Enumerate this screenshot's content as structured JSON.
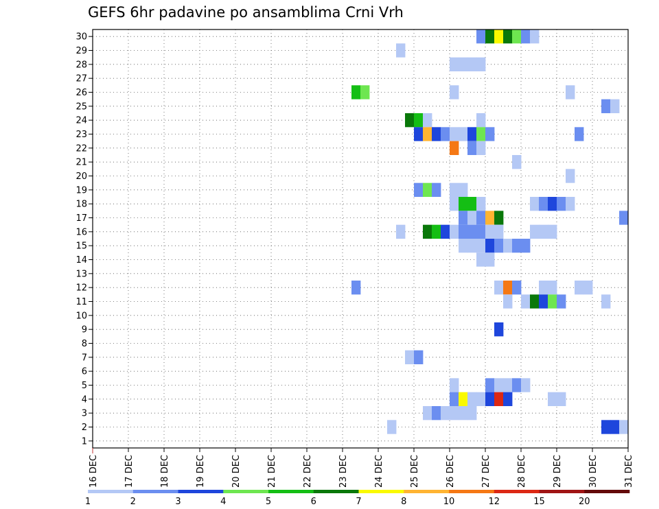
{
  "chart_data": {
    "type": "heatmap",
    "title": "GEFS 6hr padavine po ansamblima Crni Vrh",
    "xlabel": "",
    "ylabel": "",
    "grid": true,
    "x_tick_labels": [
      "16 DEC",
      "17 DEC",
      "18 DEC",
      "19 DEC",
      "20 DEC",
      "21 DEC",
      "22 DEC",
      "23 DEC",
      "24 DEC",
      "25 DEC",
      "26 DEC",
      "27 DEC",
      "28 DEC",
      "29 DEC",
      "30 DEC",
      "31 DEC"
    ],
    "y_tick_labels": [
      "1",
      "2",
      "3",
      "4",
      "5",
      "6",
      "7",
      "8",
      "9",
      "10",
      "11",
      "12",
      "13",
      "14",
      "15",
      "16",
      "17",
      "18",
      "19",
      "20",
      "21",
      "22",
      "23",
      "24",
      "25",
      "26",
      "27",
      "28",
      "29",
      "30"
    ],
    "xlim_steps": [
      0,
      60
    ],
    "steps_per_day": 4,
    "ylim_members": [
      0,
      30
    ],
    "colorbar": {
      "labels": [
        "1",
        "2",
        "3",
        "4",
        "5",
        "6",
        "7",
        "8",
        "10",
        "12",
        "15",
        "20"
      ],
      "colors": [
        "#b4c8f5",
        "#6b8ef0",
        "#1e46dc",
        "#6ee650",
        "#14be14",
        "#0a780a",
        "#fafa00",
        "#ffb432",
        "#f57814",
        "#dc2814",
        "#a01414",
        "#640a0a"
      ]
    },
    "cells": [
      {
        "m": 30,
        "s": 43,
        "c": 2
      },
      {
        "m": 30,
        "s": 44,
        "c": 6
      },
      {
        "m": 30,
        "s": 45,
        "c": 7
      },
      {
        "m": 30,
        "s": 46,
        "c": 6
      },
      {
        "m": 30,
        "s": 47,
        "c": 4
      },
      {
        "m": 30,
        "s": 48,
        "c": 2
      },
      {
        "m": 30,
        "s": 49,
        "c": 1
      },
      {
        "m": 29,
        "s": 34,
        "c": 1
      },
      {
        "m": 28,
        "s": 40,
        "c": 1
      },
      {
        "m": 28,
        "s": 41,
        "c": 1
      },
      {
        "m": 28,
        "s": 42,
        "c": 1
      },
      {
        "m": 28,
        "s": 43,
        "c": 1
      },
      {
        "m": 26,
        "s": 29,
        "c": 5
      },
      {
        "m": 26,
        "s": 30,
        "c": 4
      },
      {
        "m": 26,
        "s": 40,
        "c": 1
      },
      {
        "m": 26,
        "s": 53,
        "c": 1
      },
      {
        "m": 25,
        "s": 57,
        "c": 2
      },
      {
        "m": 25,
        "s": 58,
        "c": 1
      },
      {
        "m": 24,
        "s": 35,
        "c": 6
      },
      {
        "m": 24,
        "s": 36,
        "c": 5
      },
      {
        "m": 24,
        "s": 37,
        "c": 1
      },
      {
        "m": 24,
        "s": 43,
        "c": 1
      },
      {
        "m": 23,
        "s": 36,
        "c": 3
      },
      {
        "m": 23,
        "s": 37,
        "c": 8
      },
      {
        "m": 23,
        "s": 38,
        "c": 3
      },
      {
        "m": 23,
        "s": 39,
        "c": 2
      },
      {
        "m": 23,
        "s": 40,
        "c": 1
      },
      {
        "m": 23,
        "s": 41,
        "c": 1
      },
      {
        "m": 23,
        "s": 42,
        "c": 3
      },
      {
        "m": 23,
        "s": 43,
        "c": 4
      },
      {
        "m": 23,
        "s": 44,
        "c": 2
      },
      {
        "m": 23,
        "s": 54,
        "c": 2
      },
      {
        "m": 22,
        "s": 40,
        "c": 9
      },
      {
        "m": 22,
        "s": 42,
        "c": 2
      },
      {
        "m": 22,
        "s": 43,
        "c": 1
      },
      {
        "m": 21,
        "s": 47,
        "c": 1
      },
      {
        "m": 20,
        "s": 53,
        "c": 1
      },
      {
        "m": 19,
        "s": 36,
        "c": 2
      },
      {
        "m": 19,
        "s": 37,
        "c": 4
      },
      {
        "m": 19,
        "s": 38,
        "c": 2
      },
      {
        "m": 19,
        "s": 40,
        "c": 1
      },
      {
        "m": 19,
        "s": 41,
        "c": 1
      },
      {
        "m": 18,
        "s": 40,
        "c": 1
      },
      {
        "m": 18,
        "s": 41,
        "c": 5
      },
      {
        "m": 18,
        "s": 42,
        "c": 5
      },
      {
        "m": 18,
        "s": 43,
        "c": 1
      },
      {
        "m": 18,
        "s": 49,
        "c": 1
      },
      {
        "m": 18,
        "s": 50,
        "c": 2
      },
      {
        "m": 18,
        "s": 51,
        "c": 3
      },
      {
        "m": 18,
        "s": 52,
        "c": 2
      },
      {
        "m": 18,
        "s": 53,
        "c": 1
      },
      {
        "m": 17,
        "s": 41,
        "c": 2
      },
      {
        "m": 17,
        "s": 42,
        "c": 1
      },
      {
        "m": 17,
        "s": 43,
        "c": 2
      },
      {
        "m": 17,
        "s": 44,
        "c": 8
      },
      {
        "m": 17,
        "s": 45,
        "c": 6
      },
      {
        "m": 17,
        "s": 59,
        "c": 2
      },
      {
        "m": 16,
        "s": 34,
        "c": 1
      },
      {
        "m": 16,
        "s": 37,
        "c": 6
      },
      {
        "m": 16,
        "s": 38,
        "c": 5
      },
      {
        "m": 16,
        "s": 39,
        "c": 3
      },
      {
        "m": 16,
        "s": 40,
        "c": 1
      },
      {
        "m": 16,
        "s": 41,
        "c": 2
      },
      {
        "m": 16,
        "s": 42,
        "c": 2
      },
      {
        "m": 16,
        "s": 43,
        "c": 2
      },
      {
        "m": 16,
        "s": 44,
        "c": 1
      },
      {
        "m": 16,
        "s": 45,
        "c": 1
      },
      {
        "m": 16,
        "s": 49,
        "c": 1
      },
      {
        "m": 16,
        "s": 50,
        "c": 1
      },
      {
        "m": 16,
        "s": 51,
        "c": 1
      },
      {
        "m": 15,
        "s": 41,
        "c": 1
      },
      {
        "m": 15,
        "s": 42,
        "c": 1
      },
      {
        "m": 15,
        "s": 43,
        "c": 1
      },
      {
        "m": 15,
        "s": 44,
        "c": 3
      },
      {
        "m": 15,
        "s": 45,
        "c": 2
      },
      {
        "m": 15,
        "s": 46,
        "c": 1
      },
      {
        "m": 15,
        "s": 47,
        "c": 2
      },
      {
        "m": 15,
        "s": 48,
        "c": 2
      },
      {
        "m": 14,
        "s": 43,
        "c": 1
      },
      {
        "m": 14,
        "s": 44,
        "c": 1
      },
      {
        "m": 12,
        "s": 29,
        "c": 2
      },
      {
        "m": 12,
        "s": 45,
        "c": 1
      },
      {
        "m": 12,
        "s": 46,
        "c": 9
      },
      {
        "m": 12,
        "s": 47,
        "c": 2
      },
      {
        "m": 12,
        "s": 50,
        "c": 1
      },
      {
        "m": 12,
        "s": 51,
        "c": 1
      },
      {
        "m": 12,
        "s": 54,
        "c": 1
      },
      {
        "m": 12,
        "s": 55,
        "c": 1
      },
      {
        "m": 11,
        "s": 46,
        "c": 1
      },
      {
        "m": 11,
        "s": 48,
        "c": 1
      },
      {
        "m": 11,
        "s": 49,
        "c": 6
      },
      {
        "m": 11,
        "s": 50,
        "c": 3
      },
      {
        "m": 11,
        "s": 51,
        "c": 4
      },
      {
        "m": 11,
        "s": 52,
        "c": 2
      },
      {
        "m": 11,
        "s": 57,
        "c": 1
      },
      {
        "m": 9,
        "s": 45,
        "c": 3
      },
      {
        "m": 7,
        "s": 35,
        "c": 1
      },
      {
        "m": 7,
        "s": 36,
        "c": 2
      },
      {
        "m": 5,
        "s": 40,
        "c": 1
      },
      {
        "m": 5,
        "s": 44,
        "c": 2
      },
      {
        "m": 5,
        "s": 45,
        "c": 1
      },
      {
        "m": 5,
        "s": 46,
        "c": 1
      },
      {
        "m": 5,
        "s": 47,
        "c": 2
      },
      {
        "m": 5,
        "s": 48,
        "c": 1
      },
      {
        "m": 4,
        "s": 40,
        "c": 2
      },
      {
        "m": 4,
        "s": 41,
        "c": 7
      },
      {
        "m": 4,
        "s": 42,
        "c": 1
      },
      {
        "m": 4,
        "s": 43,
        "c": 1
      },
      {
        "m": 4,
        "s": 44,
        "c": 3
      },
      {
        "m": 4,
        "s": 45,
        "c": 10
      },
      {
        "m": 4,
        "s": 46,
        "c": 3
      },
      {
        "m": 4,
        "s": 51,
        "c": 1
      },
      {
        "m": 4,
        "s": 52,
        "c": 1
      },
      {
        "m": 3,
        "s": 37,
        "c": 1
      },
      {
        "m": 3,
        "s": 38,
        "c": 2
      },
      {
        "m": 3,
        "s": 39,
        "c": 1
      },
      {
        "m": 3,
        "s": 40,
        "c": 1
      },
      {
        "m": 3,
        "s": 41,
        "c": 1
      },
      {
        "m": 3,
        "s": 42,
        "c": 1
      },
      {
        "m": 2,
        "s": 33,
        "c": 1
      },
      {
        "m": 2,
        "s": 57,
        "c": 3
      },
      {
        "m": 2,
        "s": 58,
        "c": 3
      },
      {
        "m": 2,
        "s": 59,
        "c": 1
      }
    ]
  }
}
